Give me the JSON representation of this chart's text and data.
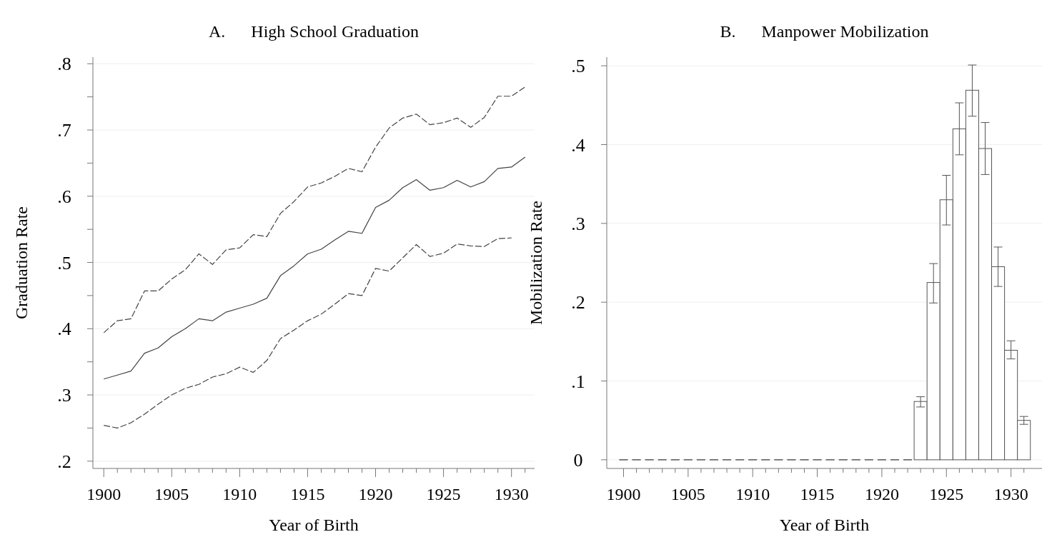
{
  "chart_data": [
    {
      "type": "line",
      "title": "A.      High School Graduation",
      "xlabel": "Year of Birth",
      "ylabel": "Graduation Rate",
      "x": [
        1900,
        1901,
        1902,
        1903,
        1904,
        1905,
        1906,
        1907,
        1908,
        1909,
        1910,
        1911,
        1912,
        1913,
        1914,
        1915,
        1916,
        1917,
        1918,
        1919,
        1920,
        1921,
        1922,
        1923,
        1924,
        1925,
        1926,
        1927,
        1928,
        1929,
        1930,
        1931
      ],
      "series": [
        {
          "color": "#444444",
          "line_style": "dashed",
          "values": [
            0.394,
            0.412,
            0.415,
            0.457,
            0.457,
            0.475,
            0.489,
            0.513,
            0.497,
            0.519,
            0.522,
            0.542,
            0.539,
            0.574,
            0.592,
            0.614,
            0.62,
            0.63,
            0.642,
            0.637,
            0.674,
            0.703,
            0.718,
            0.724,
            0.708,
            0.711,
            0.718,
            0.704,
            0.719,
            0.751,
            0.751,
            0.765
          ]
        },
        {
          "color": "#444444",
          "line_style": "solid",
          "values": [
            0.324,
            0.33,
            0.336,
            0.363,
            0.371,
            0.388,
            0.4,
            0.415,
            0.412,
            0.425,
            0.431,
            0.437,
            0.446,
            0.48,
            0.495,
            0.513,
            0.52,
            0.534,
            0.547,
            0.544,
            0.583,
            0.594,
            0.613,
            0.625,
            0.609,
            0.613,
            0.624,
            0.614,
            0.622,
            0.642,
            0.644,
            0.659
          ]
        },
        {
          "color": "#444444",
          "line_style": "dashed",
          "values": [
            0.254,
            0.25,
            0.258,
            0.271,
            0.286,
            0.3,
            0.31,
            0.316,
            0.327,
            0.332,
            0.342,
            0.334,
            0.352,
            0.385,
            0.398,
            0.412,
            0.422,
            0.437,
            0.453,
            0.45,
            0.491,
            0.487,
            0.507,
            0.527,
            0.509,
            0.514,
            0.528,
            0.525,
            0.524,
            0.536,
            0.537,
            null
          ]
        }
      ],
      "xlim": [
        1899.2,
        1931.7
      ],
      "xticks": [
        1900,
        {
          "value": 1901,
          "label": null
        },
        {
          "value": 1902,
          "label": null
        },
        {
          "value": 1903,
          "label": null
        },
        {
          "value": 1904,
          "label": null
        },
        1905,
        {
          "value": 1906,
          "label": null
        },
        {
          "value": 1907,
          "label": null
        },
        {
          "value": 1908,
          "label": null
        },
        {
          "value": 1909,
          "label": null
        },
        1910,
        {
          "value": 1911,
          "label": null
        },
        {
          "value": 1912,
          "label": null
        },
        {
          "value": 1913,
          "label": null
        },
        {
          "value": 1914,
          "label": null
        },
        1915,
        {
          "value": 1916,
          "label": null
        },
        {
          "value": 1917,
          "label": null
        },
        {
          "value": 1918,
          "label": null
        },
        {
          "value": 1919,
          "label": null
        },
        1920,
        {
          "value": 1921,
          "label": null
        },
        {
          "value": 1922,
          "label": null
        },
        {
          "value": 1923,
          "label": null
        },
        {
          "value": 1924,
          "label": null
        },
        1925,
        {
          "value": 1926,
          "label": null
        },
        {
          "value": 1927,
          "label": null
        },
        {
          "value": 1928,
          "label": null
        },
        {
          "value": 1929,
          "label": null
        },
        1930,
        {
          "value": 1931,
          "label": null
        }
      ],
      "ylim": [
        0.189,
        0.81
      ],
      "yticks": [
        {
          "value": 0.2,
          "label": ".2"
        },
        {
          "value": 0.25,
          "label": null
        },
        {
          "value": 0.3,
          "label": ".3"
        },
        {
          "value": 0.35,
          "label": null
        },
        {
          "value": 0.4,
          "label": ".4"
        },
        {
          "value": 0.45,
          "label": null
        },
        {
          "value": 0.5,
          "label": ".5"
        },
        {
          "value": 0.55,
          "label": null
        },
        {
          "value": 0.6,
          "label": ".6"
        },
        {
          "value": 0.65,
          "label": null
        },
        {
          "value": 0.7,
          "label": ".7"
        },
        {
          "value": 0.75,
          "label": null
        },
        {
          "value": 0.8,
          "label": ".8"
        }
      ],
      "grid": "y"
    },
    {
      "type": "bar",
      "title": "B.      Manpower Mobilization",
      "xlabel": "Year of Birth",
      "ylabel": "Mobilization Rate",
      "x": [
        1900,
        1901,
        1902,
        1903,
        1904,
        1905,
        1906,
        1907,
        1908,
        1909,
        1910,
        1911,
        1912,
        1913,
        1914,
        1915,
        1916,
        1917,
        1918,
        1919,
        1920,
        1921,
        1922,
        1923,
        1924,
        1925,
        1926,
        1927,
        1928,
        1929,
        1930,
        1931
      ],
      "values": [
        0,
        0,
        0,
        0,
        0,
        0,
        0,
        0,
        0,
        0,
        0,
        0,
        0,
        0,
        0,
        0,
        0,
        0,
        0,
        0,
        0,
        0,
        0,
        0.074,
        0.225,
        0.33,
        0.42,
        0.469,
        0.395,
        0.245,
        0.139,
        0.05
      ],
      "errors": [
        0,
        0,
        0,
        0,
        0,
        0,
        0,
        0,
        0,
        0,
        0,
        0,
        0,
        0,
        0,
        0,
        0,
        0,
        0,
        0,
        0,
        0,
        0,
        [
          0.067,
          0.08
        ],
        [
          0.199,
          0.249
        ],
        [
          0.298,
          0.361
        ],
        [
          0.387,
          0.453
        ],
        [
          0.436,
          0.501
        ],
        [
          0.362,
          0.428
        ],
        [
          0.22,
          0.27
        ],
        [
          0.128,
          0.151
        ],
        [
          0.045,
          0.055
        ]
      ],
      "color": "#ffffff",
      "xlim": [
        1898.7,
        1932.4
      ],
      "xticks": [
        1900,
        {
          "value": 1901,
          "label": null
        },
        {
          "value": 1902,
          "label": null
        },
        {
          "value": 1903,
          "label": null
        },
        {
          "value": 1904,
          "label": null
        },
        1905,
        {
          "value": 1906,
          "label": null
        },
        {
          "value": 1907,
          "label": null
        },
        {
          "value": 1908,
          "label": null
        },
        {
          "value": 1909,
          "label": null
        },
        1910,
        {
          "value": 1911,
          "label": null
        },
        {
          "value": 1912,
          "label": null
        },
        {
          "value": 1913,
          "label": null
        },
        {
          "value": 1914,
          "label": null
        },
        1915,
        {
          "value": 1916,
          "label": null
        },
        {
          "value": 1917,
          "label": null
        },
        {
          "value": 1918,
          "label": null
        },
        {
          "value": 1919,
          "label": null
        },
        1920,
        {
          "value": 1921,
          "label": null
        },
        {
          "value": 1922,
          "label": null
        },
        {
          "value": 1923,
          "label": null
        },
        {
          "value": 1924,
          "label": null
        },
        1925,
        {
          "value": 1926,
          "label": null
        },
        {
          "value": 1927,
          "label": null
        },
        {
          "value": 1928,
          "label": null
        },
        {
          "value": 1929,
          "label": null
        },
        1930,
        {
          "value": 1931,
          "label": null
        }
      ],
      "ylim": [
        -0.011,
        0.511
      ],
      "yticks": [
        {
          "value": 0,
          "label": "0"
        },
        {
          "value": 0.1,
          "label": ".1"
        },
        {
          "value": 0.2,
          "label": ".2"
        },
        {
          "value": 0.3,
          "label": ".3"
        },
        {
          "value": 0.4,
          "label": ".4"
        },
        {
          "value": 0.5,
          "label": ".5"
        }
      ],
      "grid": "y"
    }
  ]
}
